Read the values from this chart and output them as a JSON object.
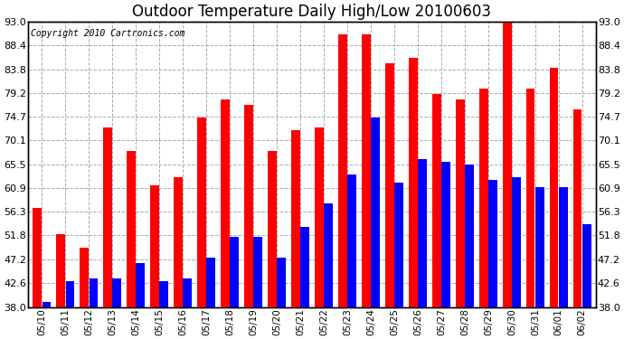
{
  "title": "Outdoor Temperature Daily High/Low 20100603",
  "copyright": "Copyright 2010 Cartronics.com",
  "dates": [
    "05/10",
    "05/11",
    "05/12",
    "05/13",
    "05/14",
    "05/15",
    "05/16",
    "05/17",
    "05/18",
    "05/19",
    "05/20",
    "05/21",
    "05/22",
    "05/23",
    "05/24",
    "05/25",
    "05/26",
    "05/27",
    "05/28",
    "05/29",
    "05/30",
    "05/31",
    "06/01",
    "06/02"
  ],
  "highs": [
    57.0,
    52.0,
    49.5,
    72.5,
    68.0,
    61.5,
    63.0,
    74.5,
    78.0,
    77.0,
    68.0,
    72.0,
    72.5,
    90.5,
    90.5,
    85.0,
    86.0,
    79.0,
    78.0,
    80.0,
    94.0,
    80.0,
    84.0,
    76.0
  ],
  "lows": [
    39.0,
    43.0,
    43.5,
    43.5,
    46.5,
    43.0,
    43.5,
    47.5,
    51.5,
    51.5,
    47.5,
    53.5,
    58.0,
    63.5,
    74.5,
    62.0,
    66.5,
    66.0,
    65.5,
    62.5,
    63.0,
    61.0,
    61.0,
    54.0
  ],
  "high_color": "#ff0000",
  "low_color": "#0000ff",
  "bg_color": "#ffffff",
  "grid_color": "#aaaaaa",
  "ybase": 38.0,
  "ylim_min": 38.0,
  "ylim_max": 93.0,
  "yticks": [
    38.0,
    42.6,
    47.2,
    51.8,
    56.3,
    60.9,
    65.5,
    70.1,
    74.7,
    79.2,
    83.8,
    88.4,
    93.0
  ],
  "title_fontsize": 12,
  "copyright_fontsize": 7
}
